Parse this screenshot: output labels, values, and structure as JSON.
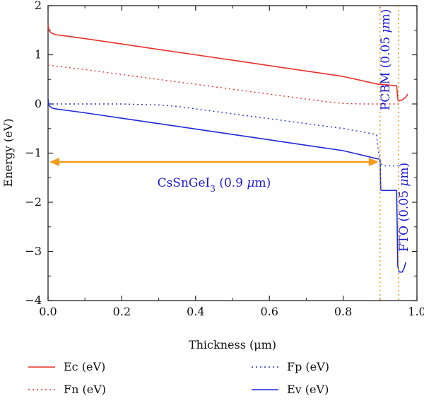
{
  "chart_data": {
    "type": "line",
    "xlabel": "Thickness (μm)",
    "ylabel": "Energy (eV)",
    "xlim": [
      0.0,
      1.0
    ],
    "ylim": [
      -4,
      2
    ],
    "xticks": [
      0.0,
      0.2,
      0.4,
      0.6,
      0.8,
      1.0
    ],
    "xtick_labels": [
      "0.0",
      "0.2",
      "0.4",
      "0.6",
      "0.8",
      "1.0"
    ],
    "yticks": [
      -4,
      -3,
      -2,
      -1,
      0,
      1,
      2
    ],
    "ytick_labels": [
      "−4",
      "−3",
      "−2",
      "−1",
      "0",
      "1",
      "2"
    ],
    "grid": false,
    "legend_position": "below",
    "series": [
      {
        "name": "Ec (eV)",
        "color": "#e8312a",
        "style": "solid",
        "x": [
          0.0,
          0.002,
          0.005,
          0.01,
          0.02,
          0.05,
          0.1,
          0.2,
          0.3,
          0.4,
          0.5,
          0.6,
          0.7,
          0.8,
          0.895,
          0.9,
          0.93,
          0.945,
          0.948,
          0.95,
          0.96,
          0.97,
          0.975
        ],
        "y": [
          1.62,
          1.52,
          1.47,
          1.44,
          1.41,
          1.38,
          1.33,
          1.22,
          1.11,
          1.0,
          0.89,
          0.78,
          0.67,
          0.56,
          0.4,
          0.4,
          0.38,
          0.37,
          0.1,
          0.06,
          0.08,
          0.14,
          0.2
        ]
      },
      {
        "name": "Fn (eV)",
        "color": "#e8312a",
        "style": "dotted",
        "x": [
          0.0,
          0.1,
          0.2,
          0.3,
          0.4,
          0.5,
          0.6,
          0.7,
          0.75,
          0.8,
          0.85,
          0.9,
          0.93,
          0.95
        ],
        "y": [
          0.79,
          0.7,
          0.6,
          0.5,
          0.4,
          0.3,
          0.2,
          0.1,
          0.05,
          0.01,
          0.0,
          0.0,
          0.0,
          0.0
        ]
      },
      {
        "name": "Fp (eV)",
        "color": "#2233cc",
        "style": "dotted",
        "x": [
          0.0,
          0.1,
          0.2,
          0.3,
          0.35,
          0.4,
          0.5,
          0.6,
          0.7,
          0.8,
          0.89,
          0.9,
          0.91,
          0.93,
          0.95
        ],
        "y": [
          0.0,
          0.0,
          0.0,
          -0.02,
          -0.05,
          -0.1,
          -0.2,
          -0.3,
          -0.4,
          -0.5,
          -0.62,
          -1.2,
          -1.26,
          -1.26,
          -1.26
        ]
      },
      {
        "name": "Ev (eV)",
        "color": "#1f2ad6",
        "style": "solid",
        "x": [
          0.0,
          0.002,
          0.005,
          0.01,
          0.02,
          0.05,
          0.1,
          0.2,
          0.3,
          0.4,
          0.5,
          0.6,
          0.7,
          0.8,
          0.895,
          0.9,
          0.902,
          0.905,
          0.93,
          0.945,
          0.948,
          0.952,
          0.96,
          0.965,
          0.97
        ],
        "y": [
          0.1,
          -0.02,
          -0.05,
          -0.08,
          -0.1,
          -0.13,
          -0.18,
          -0.29,
          -0.4,
          -0.51,
          -0.62,
          -0.73,
          -0.84,
          -0.95,
          -1.12,
          -1.12,
          -1.75,
          -1.76,
          -1.76,
          -1.76,
          -3.3,
          -3.42,
          -3.42,
          -3.35,
          -3.22
        ]
      }
    ],
    "vlines": [
      {
        "x": 0.9,
        "color": "#f39a1e",
        "style": "dotted"
      },
      {
        "x": 0.95,
        "color": "#f39a1e",
        "style": "dotted"
      }
    ],
    "arrow": {
      "x1": 0.0,
      "x2": 0.9,
      "y": -1.18,
      "color": "#f39a1e"
    },
    "annotations": [
      {
        "text": "CsSnGeI3 (0.9 μm)",
        "parts": [
          "CsSnGeI",
          "3",
          " (0.9 ",
          "μ",
          "m)"
        ],
        "x": 0.45,
        "y": -1.6,
        "color": "#1a1ad6"
      },
      {
        "text": "PCBM (0.05 μm)",
        "x": 0.925,
        "y": 0.9,
        "rotation": -90,
        "color": "#1a1ad6"
      },
      {
        "text": "FTO (0.05 μm)",
        "x": 0.975,
        "y": -2.1,
        "rotation": -90,
        "color": "#1a1ad6"
      }
    ]
  }
}
